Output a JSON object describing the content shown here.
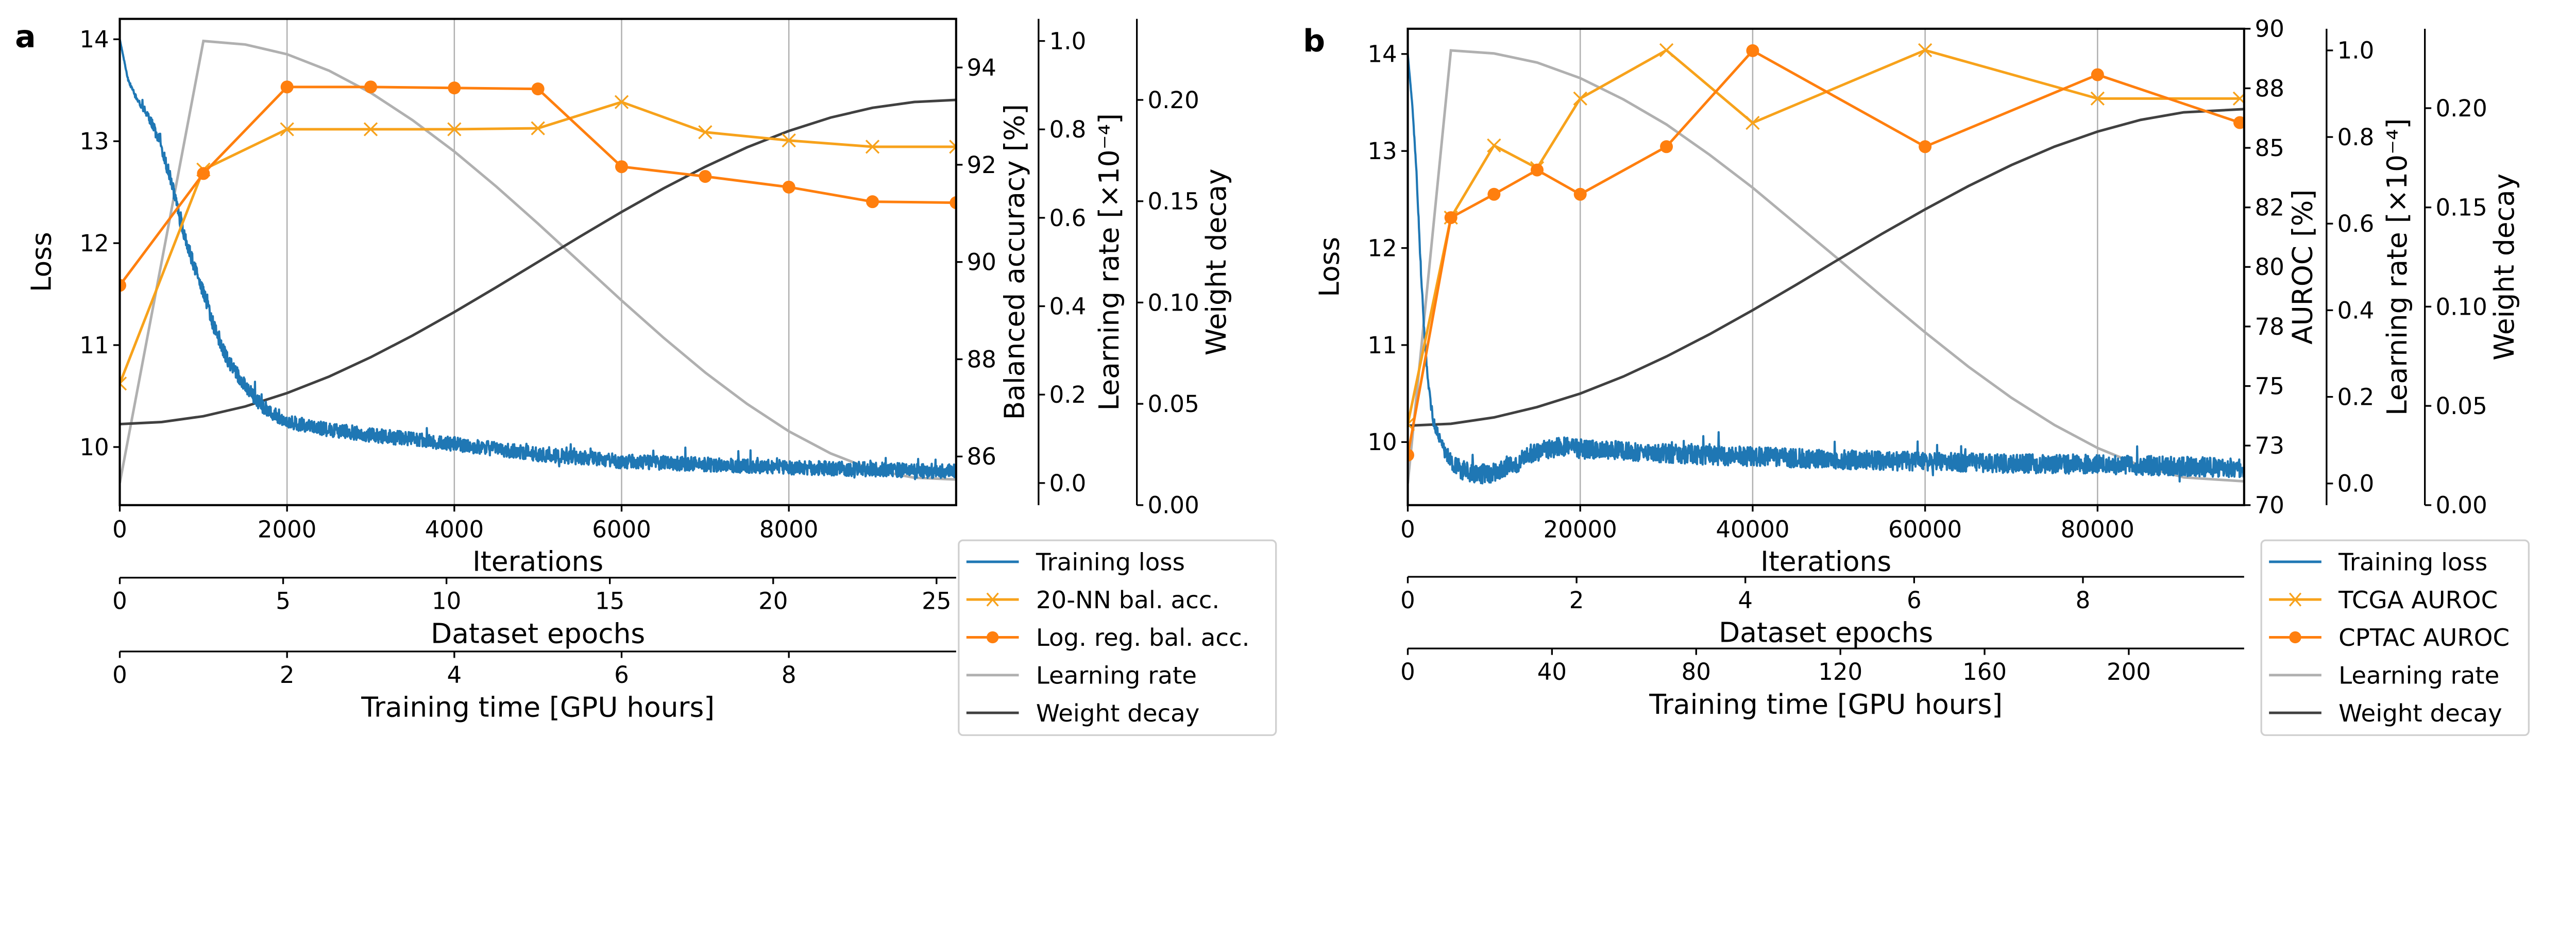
{
  "chart_data": [
    {
      "panel_label": "a",
      "type": "line",
      "grid": "vertical",
      "legend_position": "bottom-right outside",
      "x_label": "Iterations",
      "xlim": [
        0,
        10000
      ],
      "x_ticks": [
        0,
        2000,
        4000,
        6000,
        8000
      ],
      "x_tick_labels": [
        "0",
        "2000",
        "4000",
        "6000",
        "8000"
      ],
      "y_label": "Loss",
      "ylim": [
        9.43,
        14.2
      ],
      "y_ticks": [
        10,
        11,
        12,
        13,
        14
      ],
      "y_tick_labels": [
        "10",
        "11",
        "12",
        "13",
        "14"
      ],
      "secondary_x_axes": [
        {
          "label": "Dataset epochs",
          "range": [
            0,
            25.6
          ],
          "ticks": [
            0,
            5,
            10,
            15,
            20,
            25
          ],
          "tick_labels": [
            "0",
            "5",
            "10",
            "15",
            "20",
            "25"
          ]
        },
        {
          "label": "Training time [GPU hours]",
          "range": [
            0,
            10
          ],
          "ticks": [
            0,
            2,
            4,
            6,
            8
          ],
          "tick_labels": [
            "0",
            "2",
            "4",
            "6",
            "8"
          ]
        }
      ],
      "right_axes": [
        {
          "id": "metric",
          "label": "Balanced accuracy [%]",
          "range": [
            85,
            95
          ],
          "ticks": [
            86,
            88,
            90,
            92,
            94
          ],
          "tick_labels": [
            "86",
            "88",
            "90",
            "92",
            "94"
          ]
        },
        {
          "id": "lr",
          "label": "Learning rate [×10⁻⁴]",
          "range": [
            -0.05,
            1.05
          ],
          "ticks": [
            0,
            0.2,
            0.4,
            0.6,
            0.8,
            1.0
          ],
          "tick_labels": [
            "0.0",
            "0.2",
            "0.4",
            "0.6",
            "0.8",
            "1.0"
          ]
        },
        {
          "id": "wd",
          "label": "Weight decay",
          "range": [
            0,
            0.24
          ],
          "ticks": [
            0,
            0.05,
            0.1,
            0.15,
            0.2
          ],
          "tick_labels": [
            "0.00",
            "0.05",
            "0.10",
            "0.15",
            "0.20"
          ]
        }
      ],
      "series": [
        {
          "name": "Training loss",
          "axis": "loss",
          "color": "#1f77b4",
          "noisy": true,
          "x": [
            0,
            100,
            200,
            300,
            400,
            500,
            600,
            700,
            800,
            900,
            1000,
            1100,
            1200,
            1300,
            1500,
            1700,
            2000,
            2500,
            3000,
            4000,
            5000,
            6000,
            7000,
            8000,
            9000,
            10000
          ],
          "y": [
            14.0,
            13.6,
            13.42,
            13.3,
            13.15,
            12.93,
            12.65,
            12.3,
            12.0,
            11.75,
            11.52,
            11.25,
            11.02,
            10.84,
            10.6,
            10.4,
            10.25,
            10.17,
            10.12,
            10.03,
            9.93,
            9.86,
            9.83,
            9.8,
            9.78,
            9.76
          ]
        },
        {
          "name": "20-NN bal. acc.",
          "axis": "metric",
          "color": "#f7a21b",
          "marker": "x",
          "x": [
            0,
            1000,
            2000,
            3000,
            4000,
            5000,
            6000,
            7000,
            8000,
            9000,
            10000
          ],
          "y": [
            87.5,
            91.9,
            92.73,
            92.73,
            92.73,
            92.75,
            93.29,
            92.67,
            92.5,
            92.37,
            92.37
          ]
        },
        {
          "name": "Log. reg. bal. acc.",
          "axis": "metric",
          "color": "#ff7f0e",
          "marker": "o",
          "x": [
            0,
            1000,
            2000,
            3000,
            4000,
            5000,
            6000,
            7000,
            8000,
            9000,
            10000
          ],
          "y": [
            89.52,
            91.82,
            93.6,
            93.6,
            93.58,
            93.56,
            91.96,
            91.76,
            91.54,
            91.24,
            91.22
          ]
        },
        {
          "name": "Learning rate",
          "axis": "lr",
          "color": "#b0b0b0",
          "x": [
            0,
            1000,
            1500,
            2000,
            2500,
            3000,
            3500,
            4000,
            4500,
            5000,
            5500,
            6000,
            6500,
            7000,
            7500,
            8000,
            8500,
            9000,
            9500,
            10000
          ],
          "y": [
            0,
            1.0,
            0.992,
            0.97,
            0.933,
            0.883,
            0.821,
            0.75,
            0.671,
            0.587,
            0.5,
            0.413,
            0.329,
            0.25,
            0.179,
            0.117,
            0.067,
            0.03,
            0.012,
            0.008
          ]
        },
        {
          "name": "Weight decay",
          "axis": "wd",
          "color": "#404040",
          "x": [
            0,
            500,
            1000,
            1500,
            2000,
            2500,
            3000,
            3500,
            4000,
            4500,
            5000,
            5500,
            6000,
            6500,
            7000,
            7500,
            8000,
            8500,
            9000,
            9500,
            10000
          ],
          "y": [
            0.04,
            0.041,
            0.0439,
            0.0487,
            0.0553,
            0.0634,
            0.073,
            0.0837,
            0.0953,
            0.1075,
            0.12,
            0.1325,
            0.1447,
            0.1563,
            0.167,
            0.1766,
            0.1847,
            0.1913,
            0.1961,
            0.199,
            0.2
          ]
        }
      ]
    },
    {
      "panel_label": "b",
      "type": "line",
      "grid": "vertical",
      "legend_position": "bottom-right outside",
      "x_label": "Iterations",
      "xlim": [
        0,
        97000
      ],
      "x_ticks": [
        0,
        20000,
        40000,
        60000,
        80000
      ],
      "x_tick_labels": [
        "0",
        "20000",
        "40000",
        "60000",
        "80000"
      ],
      "y_label": "Loss",
      "ylim": [
        9.35,
        14.26
      ],
      "y_ticks": [
        10,
        11,
        12,
        13,
        14
      ],
      "y_tick_labels": [
        "10",
        "11",
        "12",
        "13",
        "14"
      ],
      "secondary_x_axes": [
        {
          "label": "Dataset epochs",
          "range": [
            0,
            9.91
          ],
          "ticks": [
            0,
            2,
            4,
            6,
            8
          ],
          "tick_labels": [
            "0",
            "2",
            "4",
            "6",
            "8"
          ]
        },
        {
          "label": "Training time [GPU hours]",
          "range": [
            0,
            232
          ],
          "ticks": [
            0,
            40,
            80,
            120,
            160,
            200
          ],
          "tick_labels": [
            "0",
            "40",
            "80",
            "120",
            "160",
            "200"
          ]
        }
      ],
      "right_axes": [
        {
          "id": "metric",
          "label": "AUROC [%]",
          "range": [
            70,
            90
          ],
          "ticks": [
            70,
            72.5,
            75,
            77.5,
            80,
            82.5,
            85,
            87.5,
            90
          ],
          "tick_labels": [
            "70",
            "73",
            "75",
            "78",
            "80",
            "82",
            "85",
            "88",
            "90"
          ]
        },
        {
          "id": "lr",
          "label": "Learning rate [×10⁻⁴]",
          "range": [
            -0.05,
            1.05
          ],
          "ticks": [
            0,
            0.2,
            0.4,
            0.6,
            0.8,
            1.0
          ],
          "tick_labels": [
            "0.0",
            "0.2",
            "0.4",
            "0.6",
            "0.8",
            "1.0"
          ]
        },
        {
          "id": "wd",
          "label": "Weight decay",
          "range": [
            0,
            0.24
          ],
          "ticks": [
            0,
            0.05,
            0.1,
            0.15,
            0.2
          ],
          "tick_labels": [
            "0.00",
            "0.05",
            "0.10",
            "0.15",
            "0.20"
          ]
        }
      ],
      "series": [
        {
          "name": "Training loss",
          "axis": "loss",
          "color": "#1f77b4",
          "noisy": true,
          "x": [
            0,
            500,
            1000,
            1500,
            2000,
            2500,
            3000,
            4000,
            5000,
            6000,
            8000,
            10000,
            12000,
            14000,
            16000,
            18000,
            20000,
            30000,
            40000,
            50000,
            60000,
            70000,
            80000,
            90000,
            97000
          ],
          "y": [
            14.0,
            13.5,
            12.8,
            11.8,
            11.0,
            10.5,
            10.2,
            9.95,
            9.8,
            9.72,
            9.67,
            9.68,
            9.75,
            9.85,
            9.93,
            9.95,
            9.93,
            9.88,
            9.85,
            9.82,
            9.8,
            9.78,
            9.77,
            9.75,
            9.73
          ]
        },
        {
          "name": "TCGA AUROC",
          "axis": "metric",
          "color": "#f7a21b",
          "marker": "x",
          "x": [
            0,
            5000,
            10000,
            15000,
            20000,
            30000,
            40000,
            60000,
            80000,
            96500
          ],
          "y": [
            73.4,
            82.07,
            85.1,
            84.15,
            87.07,
            89.1,
            86.05,
            89.1,
            87.07,
            87.07
          ]
        },
        {
          "name": "CPTAC AUROC",
          "axis": "metric",
          "color": "#ff7f0e",
          "marker": "o",
          "x": [
            0,
            5000,
            10000,
            15000,
            20000,
            30000,
            40000,
            60000,
            80000,
            96500
          ],
          "y": [
            72.1,
            82.07,
            83.05,
            84.07,
            83.05,
            85.05,
            89.08,
            85.05,
            88.07,
            86.06
          ]
        },
        {
          "name": "Learning rate",
          "axis": "lr",
          "color": "#b0b0b0",
          "x": [
            0,
            5000,
            10000,
            15000,
            20000,
            25000,
            30000,
            35000,
            40000,
            45000,
            50000,
            55000,
            60000,
            65000,
            70000,
            75000,
            80000,
            85000,
            90000,
            97000
          ],
          "y": [
            0,
            1.0,
            0.993,
            0.972,
            0.936,
            0.887,
            0.829,
            0.759,
            0.683,
            0.6,
            0.517,
            0.432,
            0.349,
            0.27,
            0.198,
            0.135,
            0.082,
            0.041,
            0.014,
            0.005
          ]
        },
        {
          "name": "Weight decay",
          "axis": "wd",
          "color": "#404040",
          "x": [
            0,
            5000,
            10000,
            15000,
            20000,
            25000,
            30000,
            35000,
            40000,
            45000,
            50000,
            55000,
            60000,
            65000,
            70000,
            75000,
            80000,
            85000,
            90000,
            97000
          ],
          "y": [
            0.04,
            0.041,
            0.0442,
            0.0494,
            0.0562,
            0.0648,
            0.0749,
            0.0861,
            0.0982,
            0.1109,
            0.1239,
            0.1367,
            0.149,
            0.1607,
            0.1713,
            0.1806,
            0.1882,
            0.1941,
            0.1979,
            0.1995
          ]
        }
      ]
    }
  ]
}
